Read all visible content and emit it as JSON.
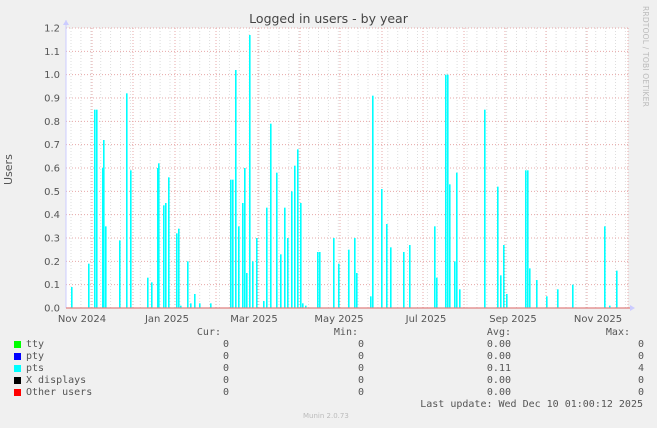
{
  "title": "Logged in users - by year",
  "watermark": "RRDTOOL / TOBI OETIKER",
  "y_axis_label": "Users",
  "legend": {
    "headers": {
      "cur": "Cur:",
      "min": "Min:",
      "avg": "Avg:",
      "max": "Max:"
    },
    "rows": [
      {
        "label": "tty",
        "color": "#00ff00",
        "cur": "0",
        "min": "0",
        "avg": "0.00",
        "max": "0"
      },
      {
        "label": "pty",
        "color": "#0000ff",
        "cur": "0",
        "min": "0",
        "avg": "0.00",
        "max": "0"
      },
      {
        "label": "pts",
        "color": "#00ffff",
        "cur": "0",
        "min": "0",
        "avg": "0.11",
        "max": "4"
      },
      {
        "label": "X displays",
        "color": "#000000",
        "cur": "0",
        "min": "0",
        "avg": "0.00",
        "max": "0"
      },
      {
        "label": "Other users",
        "color": "#ff0000",
        "cur": "0",
        "min": "0",
        "avg": "0.00",
        "max": "0"
      }
    ]
  },
  "last_update": "Last update: Wed Dec 10 01:00:12 2025",
  "footer": "Munin 2.0.73",
  "chart_data": {
    "type": "area",
    "title": "Logged in users - by year",
    "xlabel": "",
    "ylabel": "Users",
    "ylim": [
      0,
      1.2
    ],
    "yticks": [
      "0.0",
      "0.1",
      "0.2",
      "0.3",
      "0.4",
      "0.5",
      "0.6",
      "0.7",
      "0.8",
      "0.9",
      "1.0",
      "1.1",
      "1.2"
    ],
    "xticks": [
      "Nov 2024",
      "Jan 2025",
      "Mar 2025",
      "May 2025",
      "Jul 2025",
      "Sep 2025",
      "Nov 2025"
    ],
    "grid": true,
    "legend_position": "bottom",
    "series": [
      {
        "name": "tty",
        "color": "#00ff00",
        "values": "all zero"
      },
      {
        "name": "pty",
        "color": "#0000ff",
        "values": "all zero"
      },
      {
        "name": "pts",
        "color": "#00ffff",
        "points": [
          [
            71,
            0.09
          ],
          [
            88,
            0.19
          ],
          [
            94,
            0.85
          ],
          [
            96,
            0.85
          ],
          [
            102,
            0.6
          ],
          [
            103,
            0.72
          ],
          [
            105,
            0.35
          ],
          [
            119,
            0.29
          ],
          [
            126,
            0.92
          ],
          [
            130,
            0.59
          ],
          [
            147,
            0.13
          ],
          [
            151,
            0.11
          ],
          [
            157,
            0.6
          ],
          [
            158,
            0.62
          ],
          [
            163,
            0.44
          ],
          [
            165,
            0.45
          ],
          [
            168,
            0.56
          ],
          [
            176,
            0.32
          ],
          [
            178,
            0.34
          ],
          [
            180,
            0.01
          ],
          [
            187,
            0.2
          ],
          [
            190,
            0.02
          ],
          [
            194,
            0.06
          ],
          [
            199,
            0.02
          ],
          [
            210,
            0.02
          ],
          [
            230,
            0.55
          ],
          [
            232,
            0.55
          ],
          [
            235,
            1.02
          ],
          [
            238,
            0.35
          ],
          [
            242,
            0.45
          ],
          [
            244,
            0.6
          ],
          [
            246,
            0.15
          ],
          [
            249,
            1.17
          ],
          [
            252,
            0.2
          ],
          [
            256,
            0.3
          ],
          [
            263,
            0.03
          ],
          [
            266,
            0.43
          ],
          [
            270,
            0.79
          ],
          [
            276,
            0.58
          ],
          [
            280,
            0.23
          ],
          [
            284,
            0.43
          ],
          [
            287,
            0.3
          ],
          [
            291,
            0.5
          ],
          [
            294,
            0.61
          ],
          [
            297,
            0.68
          ],
          [
            300,
            0.45
          ],
          [
            302,
            0.02
          ],
          [
            305,
            0.01
          ],
          [
            317,
            0.24
          ],
          [
            319,
            0.24
          ],
          [
            333,
            0.3
          ],
          [
            338,
            0.19
          ],
          [
            348,
            0.25
          ],
          [
            354,
            0.3
          ],
          [
            356,
            0.15
          ],
          [
            370,
            0.05
          ],
          [
            372,
            0.91
          ],
          [
            381,
            0.51
          ],
          [
            386,
            0.36
          ],
          [
            390,
            0.26
          ],
          [
            403,
            0.24
          ],
          [
            409,
            0.27
          ],
          [
            434,
            0.35
          ],
          [
            436,
            0.13
          ],
          [
            445,
            1.0
          ],
          [
            447,
            1.0
          ],
          [
            449,
            0.53
          ],
          [
            454,
            0.2
          ],
          [
            456,
            0.58
          ],
          [
            459,
            0.08
          ],
          [
            484,
            0.85
          ],
          [
            497,
            0.52
          ],
          [
            500,
            0.14
          ],
          [
            503,
            0.27
          ],
          [
            506,
            0.06
          ],
          [
            525,
            0.59
          ],
          [
            527,
            0.59
          ],
          [
            529,
            0.17
          ],
          [
            536,
            0.12
          ],
          [
            546,
            0.05
          ],
          [
            557,
            0.08
          ],
          [
            572,
            0.1
          ],
          [
            604,
            0.35
          ],
          [
            609,
            0.01
          ],
          [
            616,
            0.16
          ]
        ]
      },
      {
        "name": "X displays",
        "color": "#000000",
        "values": "all zero"
      },
      {
        "name": "Other users",
        "color": "#ff0000",
        "values": "all zero"
      }
    ]
  }
}
